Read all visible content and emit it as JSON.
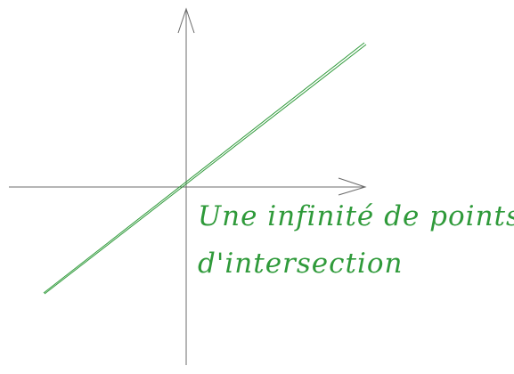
{
  "colors": {
    "axis": "#6b6b6b",
    "line": "#2f9a3a",
    "handwriting": "#2f9a3a",
    "background": "#ffffff"
  },
  "annotation": {
    "line1": "Une infinité de points",
    "line2": "d'intersection"
  }
}
